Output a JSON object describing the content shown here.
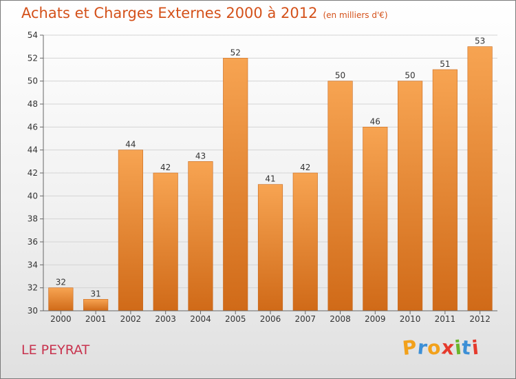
{
  "title": "Achats et Charges Externes 2000 à 2012",
  "subtitle": "(en milliers d'€)",
  "location": "LE PEYRAT",
  "logo": {
    "letters": [
      "P",
      "r",
      "o",
      "x",
      "i",
      "t",
      "i"
    ],
    "colors": [
      "#f2a11b",
      "#3c8fd6",
      "#f2a11b",
      "#e53a2d",
      "#6bb52b",
      "#3c8fd6",
      "#e53a2d"
    ]
  },
  "colors": {
    "bar_light": "#f7a452",
    "bar_dark": "#d06a18",
    "title": "#d4511a",
    "location": "#c8334e"
  },
  "chart_data": {
    "type": "bar",
    "categories": [
      "2000",
      "2001",
      "2002",
      "2003",
      "2004",
      "2005",
      "2006",
      "2007",
      "2008",
      "2009",
      "2010",
      "2011",
      "2012"
    ],
    "values": [
      32,
      31,
      44,
      42,
      43,
      52,
      41,
      42,
      50,
      46,
      50,
      51,
      53
    ],
    "ylim": [
      30,
      54
    ],
    "yticks": [
      30,
      32,
      34,
      36,
      38,
      40,
      42,
      44,
      46,
      48,
      50,
      52,
      54
    ],
    "grid": true,
    "data_labels": true
  }
}
